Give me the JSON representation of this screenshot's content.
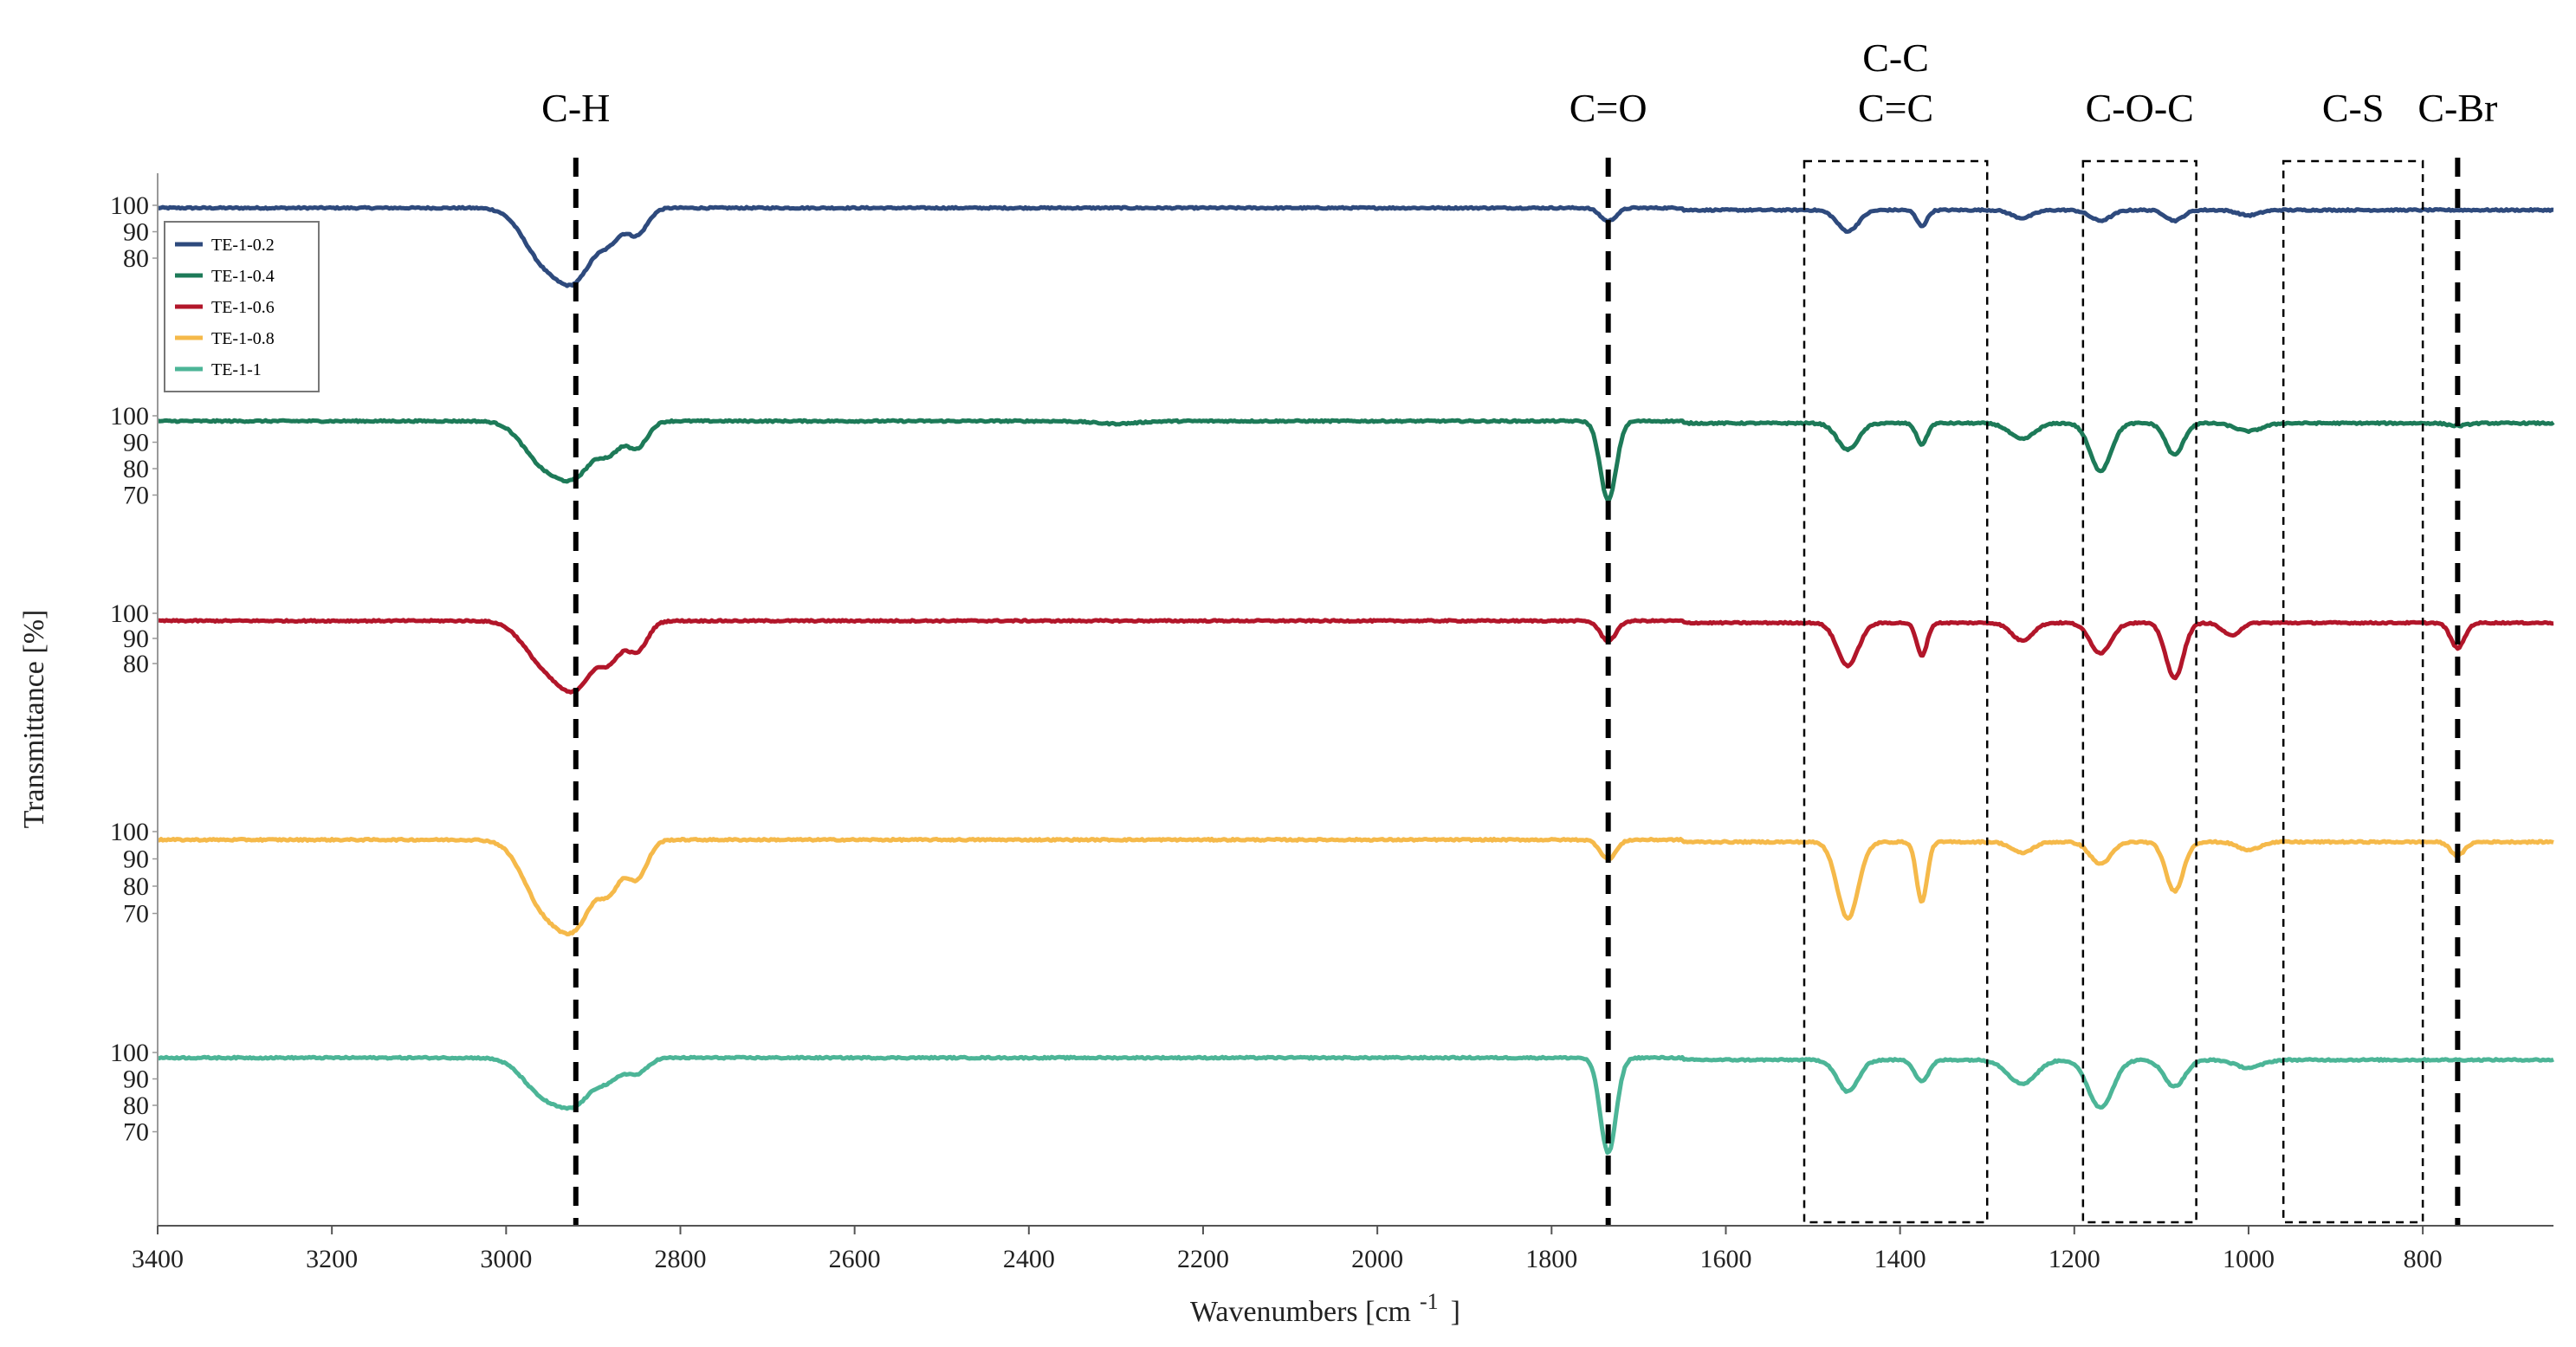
{
  "chart_data": {
    "type": "line",
    "title": "",
    "xlabel": "Wavenumbers [cm",
    "xlabel_superscript": "-1",
    "xlabel_close": "]",
    "ylabel": "Transmittance [%]",
    "xlim": [
      3400,
      650
    ],
    "x_ticks": [
      3400,
      3200,
      3000,
      2800,
      2600,
      2400,
      2200,
      2000,
      1800,
      1600,
      1400,
      1200,
      1000,
      800
    ],
    "x_tick_labels": [
      "3400",
      "3200",
      "3000",
      "2800",
      "2600",
      "2400",
      "2200",
      "2000",
      "1800",
      "1600",
      "1400",
      "1200",
      "1000",
      "800"
    ],
    "legend_position": "top-left",
    "grid": false,
    "series": [
      {
        "name": "TE-1-0.2",
        "color": "#2e4a7d",
        "y_ticks": [
          "100",
          "90",
          "80"
        ],
        "y_tick_values": [
          100,
          90,
          80
        ],
        "ylim": [
          70,
          103
        ],
        "baseline": 99,
        "bands": [
          [
            2960,
            17,
            22
          ],
          [
            2920,
            25,
            22
          ],
          [
            2880,
            9,
            12
          ],
          [
            2850,
            10,
            12
          ],
          [
            1735,
            5,
            9
          ],
          [
            1460,
            8,
            12
          ],
          [
            1375,
            6,
            6
          ],
          [
            1260,
            3,
            12
          ],
          [
            1170,
            4,
            12
          ],
          [
            1085,
            4,
            10
          ],
          [
            1000,
            2,
            12
          ]
        ]
      },
      {
        "name": "TE-1-0.4",
        "color": "#1d7a58",
        "y_ticks": [
          "100",
          "90",
          "80",
          "70"
        ],
        "y_tick_values": [
          100,
          90,
          80,
          70
        ],
        "ylim": [
          65,
          103
        ],
        "baseline": 98,
        "bands": [
          [
            2960,
            14,
            22
          ],
          [
            2920,
            19,
            22
          ],
          [
            2880,
            9,
            12
          ],
          [
            2850,
            10,
            12
          ],
          [
            2300,
            1,
            25
          ],
          [
            1735,
            30,
            9
          ],
          [
            1460,
            10,
            12
          ],
          [
            1375,
            8,
            6
          ],
          [
            1260,
            6,
            14
          ],
          [
            1170,
            18,
            12
          ],
          [
            1085,
            12,
            10
          ],
          [
            1000,
            3,
            15
          ],
          [
            760,
            1,
            10
          ]
        ]
      },
      {
        "name": "TE-1-0.6",
        "color": "#b2162a",
        "y_ticks": [
          "100",
          "90",
          "80"
        ],
        "y_tick_values": [
          100,
          90,
          80
        ],
        "ylim": [
          70,
          103
        ],
        "baseline": 97,
        "bands": [
          [
            2960,
            14,
            22
          ],
          [
            2920,
            25,
            22
          ],
          [
            2880,
            12,
            12
          ],
          [
            2850,
            12,
            12
          ],
          [
            1735,
            8,
            9
          ],
          [
            1460,
            17,
            12
          ],
          [
            1375,
            13,
            6
          ],
          [
            1260,
            7,
            12
          ],
          [
            1170,
            12,
            12
          ],
          [
            1085,
            22,
            10
          ],
          [
            1020,
            5,
            10
          ],
          [
            760,
            10,
            8
          ]
        ]
      },
      {
        "name": "TE-1-0.8",
        "color": "#f5b94a",
        "y_ticks": [
          "100",
          "90",
          "80",
          "70"
        ],
        "y_tick_values": [
          100,
          90,
          80,
          70
        ],
        "ylim": [
          62,
          103
        ],
        "baseline": 97,
        "bands": [
          [
            2960,
            21,
            22
          ],
          [
            2920,
            29,
            22
          ],
          [
            2880,
            14,
            12
          ],
          [
            2850,
            14,
            12
          ],
          [
            1735,
            7,
            9
          ],
          [
            1460,
            28,
            12
          ],
          [
            1375,
            22,
            6
          ],
          [
            1260,
            4,
            12
          ],
          [
            1170,
            8,
            12
          ],
          [
            1085,
            18,
            10
          ],
          [
            1000,
            3,
            12
          ],
          [
            760,
            5,
            8
          ]
        ]
      },
      {
        "name": "TE-1-1",
        "color": "#4cb597",
        "y_ticks": [
          "100",
          "90",
          "80",
          "70"
        ],
        "y_tick_values": [
          100,
          90,
          80,
          70
        ],
        "ylim": [
          63,
          102
        ],
        "baseline": 98,
        "bands": [
          [
            2960,
            12,
            22
          ],
          [
            2920,
            16,
            22
          ],
          [
            2880,
            6,
            12
          ],
          [
            2850,
            6,
            12
          ],
          [
            1735,
            36,
            9
          ],
          [
            1460,
            12,
            12
          ],
          [
            1375,
            8,
            8
          ],
          [
            1260,
            9,
            16
          ],
          [
            1170,
            18,
            14
          ],
          [
            1085,
            10,
            12
          ],
          [
            1000,
            3,
            15
          ]
        ]
      }
    ],
    "annotations": [
      {
        "label": "C-H",
        "lines": [
          "C-H"
        ],
        "kind": "line",
        "x": 2920
      },
      {
        "label": "C=O",
        "lines": [
          "C=O"
        ],
        "kind": "line",
        "x": 1735
      },
      {
        "label": "C-C C=C",
        "lines": [
          "C-C",
          "C=C"
        ],
        "kind": "box",
        "x_range": [
          1510,
          1300
        ]
      },
      {
        "label": "C-O-C",
        "lines": [
          "C-O-C"
        ],
        "kind": "box",
        "x_range": [
          1190,
          1060
        ]
      },
      {
        "label": "C-S",
        "lines": [
          "C-S"
        ],
        "kind": "box",
        "x_range": [
          960,
          800
        ]
      },
      {
        "label": "C-Br",
        "lines": [
          "C-Br"
        ],
        "kind": "line",
        "x": 760
      }
    ]
  }
}
